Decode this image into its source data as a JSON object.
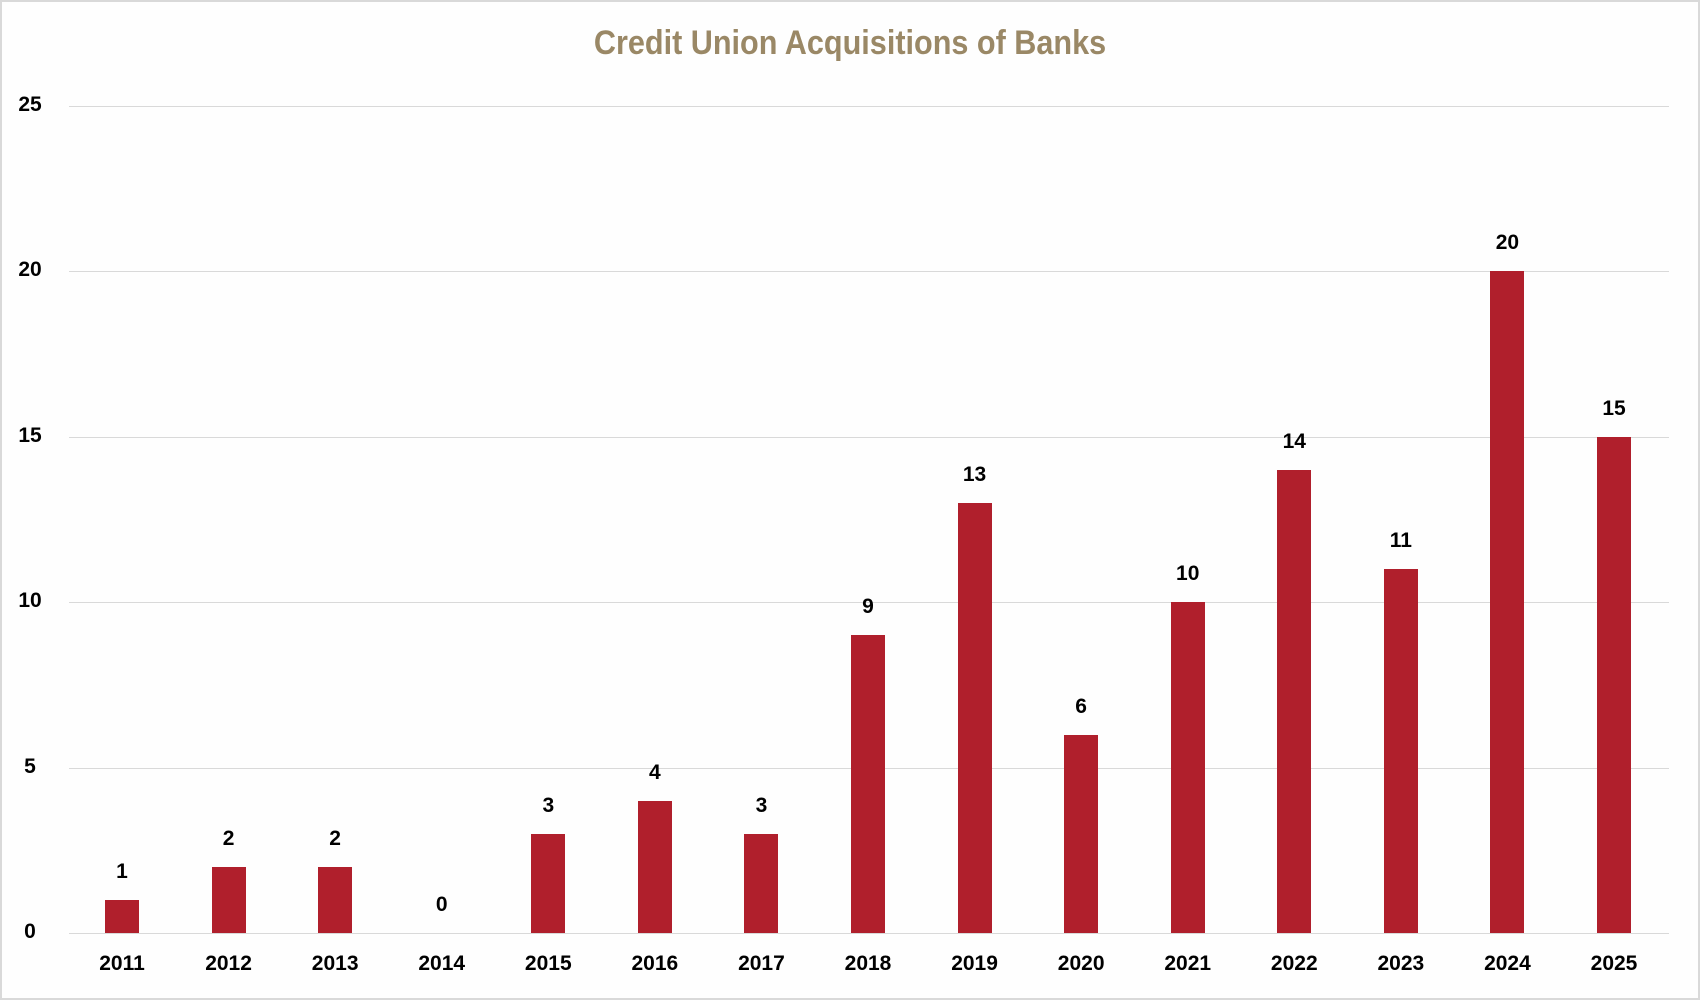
{
  "chart_data": {
    "type": "bar",
    "title": "Credit Union Acquisitions of Banks",
    "xlabel": "",
    "ylabel": "",
    "categories": [
      "2011",
      "2012",
      "2013",
      "2014",
      "2015",
      "2016",
      "2017",
      "2018",
      "2019",
      "2020",
      "2021",
      "2022",
      "2023",
      "2024",
      "2025"
    ],
    "values": [
      1,
      2,
      2,
      0,
      3,
      4,
      3,
      9,
      13,
      6,
      10,
      14,
      11,
      20,
      15
    ],
    "ylim": [
      0,
      25
    ],
    "yticks": [
      0,
      5,
      10,
      15,
      20,
      25
    ],
    "grid": true,
    "legend": "none",
    "data_labels": true,
    "colors": {
      "bar": "#b01f2c",
      "title": "#9a8866",
      "grid": "#d9d9d9"
    }
  }
}
